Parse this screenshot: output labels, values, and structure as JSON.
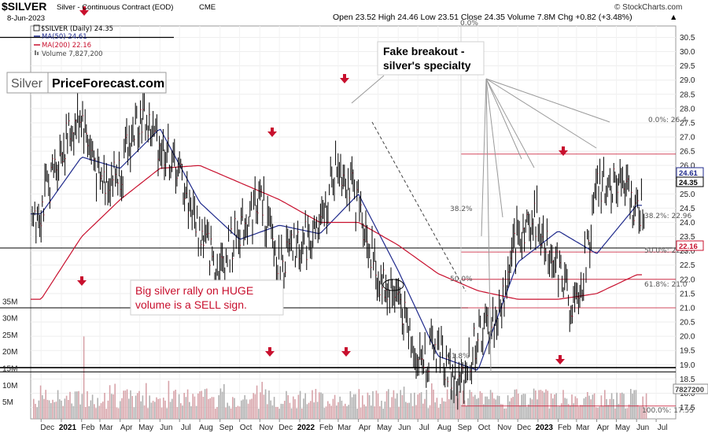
{
  "header": {
    "ticker": "$SILVER",
    "description": "Silver - Continuous Contract (EOD)",
    "exchange": "CME",
    "date": "8-Jun-2023",
    "ohlc": "Open 23.52  High 24.46  Low 23.51  Close 24.35  Volume 7.8M  Chg +0.82 (+3.48%)",
    "chg_arrow": "▲",
    "credit": "© StockCharts.com"
  },
  "legend": {
    "price": "$SILVER (Daily) 24.35",
    "ma50": "MA(50) 24.61",
    "ma200": "MA(200) 22.16",
    "volume": "Volume 7,827,200"
  },
  "brand": {
    "silver": "Silver",
    "site": "PriceForecast.com"
  },
  "annotations": {
    "fake_breakout_1": "Fake breakout -",
    "fake_breakout_2": "silver's specialty",
    "rally_1": "Big silver rally on HUGE",
    "rally_2": "volume is a SELL sign."
  },
  "fib_labels": {
    "left_0": "0.0%",
    "left_382": "38.2%",
    "left_50": "50.0%",
    "left_618": "61.8%",
    "right_0": "0.0%: 26.4",
    "right_382": "38.2%: 22.96",
    "right_50": "50.0%: 22.0",
    "right_618": "61.8%: 21.0",
    "right_100": "100.0%: 17.55"
  },
  "price_boxes": {
    "ma50": "24.61",
    "close": "24.35",
    "ma200": "22.16",
    "volume": "7827200"
  },
  "colors": {
    "price": "#000000",
    "ma50": "#1f2a8c",
    "ma200": "#c8102e",
    "volume": "#b0b0b0",
    "volume_hl": "#c8102e",
    "arrow": "#c8102e",
    "fib": "#c8102e"
  },
  "chart_data": {
    "type": "line",
    "title": "$SILVER Silver - Continuous Contract (EOD) CME",
    "ylim": [
      17.1,
      30.9
    ],
    "y_ticks": [
      "17.5",
      "18.0",
      "18.5",
      "19.0",
      "19.5",
      "20.0",
      "20.5",
      "21.0",
      "21.5",
      "22.0",
      "22.5",
      "23.0",
      "23.5",
      "24.0",
      "24.5",
      "25.0",
      "25.5",
      "26.0",
      "26.5",
      "27.0",
      "27.5",
      "28.0",
      "28.5",
      "29.0",
      "29.5",
      "30.0",
      "30.5"
    ],
    "volume_ticks": [
      "5M",
      "10M",
      "15M",
      "20M",
      "25M",
      "30M",
      "35M"
    ],
    "x_ticks": [
      "Dec",
      "2021",
      "Feb",
      "Mar",
      "Apr",
      "May",
      "Jun",
      "Jul",
      "Aug",
      "Sep",
      "Oct",
      "Nov",
      "Dec",
      "2022",
      "Feb",
      "Mar",
      "Apr",
      "May",
      "Jun",
      "Jul",
      "Aug",
      "Sep",
      "Oct",
      "Nov",
      "Dec",
      "2023",
      "Feb",
      "Mar",
      "Apr",
      "May",
      "Jun",
      "Jul"
    ],
    "horizontal_levels": [
      30.5,
      23.1,
      21.0,
      18.9,
      18.75,
      26.4,
      22.96,
      22.0,
      17.55
    ],
    "series": [
      {
        "name": "$SILVER (Daily)",
        "x": [
          "2020-12-01",
          "2021-01-01",
          "2021-02-01",
          "2021-03-01",
          "2021-04-01",
          "2021-05-01",
          "2021-06-01",
          "2021-07-01",
          "2021-08-01",
          "2021-09-01",
          "2021-10-01",
          "2021-11-01",
          "2021-12-01",
          "2022-01-01",
          "2022-02-01",
          "2022-03-01",
          "2022-04-01",
          "2022-05-01",
          "2022-06-01",
          "2022-07-01",
          "2022-08-01",
          "2022-09-01",
          "2022-10-01",
          "2022-11-01",
          "2022-12-01",
          "2023-01-01",
          "2023-02-01",
          "2023-03-01",
          "2023-04-01",
          "2023-05-01",
          "2023-06-01"
        ],
        "values": [
          24.5,
          26.6,
          27.8,
          25.4,
          25.8,
          27.8,
          26.8,
          25.7,
          23.7,
          22.3,
          23.8,
          24.9,
          22.5,
          23.2,
          23.7,
          26.2,
          24.6,
          22.0,
          21.4,
          19.1,
          19.6,
          18.1,
          20.0,
          20.5,
          23.6,
          24.1,
          22.4,
          20.8,
          25.0,
          25.6,
          24.35
        ]
      },
      {
        "name": "MA(50)",
        "x": [
          "2020-12-01",
          "2021-02-01",
          "2021-04-01",
          "2021-06-01",
          "2021-08-01",
          "2021-10-01",
          "2021-12-01",
          "2022-02-01",
          "2022-04-01",
          "2022-06-01",
          "2022-08-01",
          "2022-10-01",
          "2022-12-01",
          "2023-02-01",
          "2023-04-01",
          "2023-06-01"
        ],
        "values": [
          24.3,
          26.3,
          25.9,
          27.3,
          24.7,
          23.4,
          23.9,
          23.6,
          25.0,
          22.3,
          19.3,
          18.8,
          22.6,
          23.7,
          22.9,
          24.6
        ]
      },
      {
        "name": "MA(200)",
        "x": [
          "2020-12-01",
          "2021-02-01",
          "2021-04-01",
          "2021-06-01",
          "2021-08-01",
          "2021-10-01",
          "2021-12-01",
          "2022-02-01",
          "2022-04-01",
          "2022-06-01",
          "2022-08-01",
          "2022-10-01",
          "2022-12-01",
          "2023-02-01",
          "2023-04-01",
          "2023-06-01"
        ],
        "values": [
          21.3,
          23.5,
          24.8,
          25.9,
          26.0,
          25.4,
          24.8,
          24.0,
          24.0,
          23.2,
          22.2,
          21.6,
          21.3,
          21.3,
          21.5,
          22.16
        ]
      }
    ]
  }
}
